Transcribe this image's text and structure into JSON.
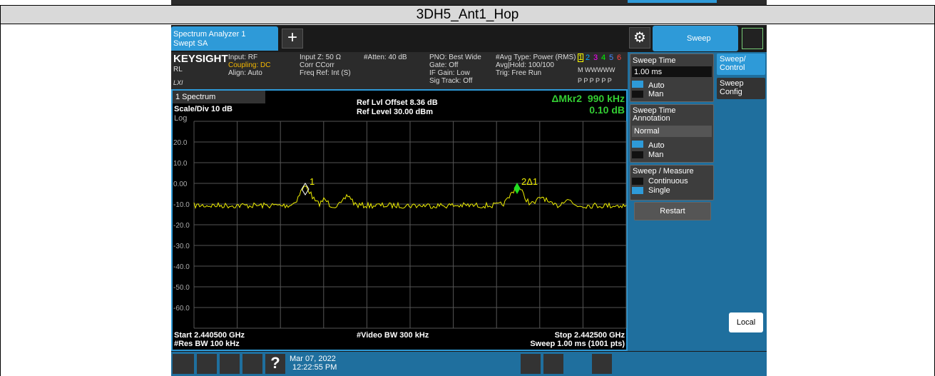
{
  "header": {
    "title": "3DH5_Ant1_Hop"
  },
  "app": {
    "tab": {
      "line1": "Spectrum Analyzer 1",
      "line2": "Swept SA"
    },
    "menu_title": "Sweep",
    "brand": "KEYSIGHT",
    "rl": "RL",
    "lxi": "LXI",
    "status": [
      [
        "Input: RF",
        "Coupling: DC",
        "Align: Auto"
      ],
      [
        "Input Z: 50 Ω",
        "Corr CCorr",
        "Freq Ref: Int (S)"
      ],
      [
        "#Atten: 40 dB"
      ],
      [
        "PNO: Best Wide",
        "Gate: Off",
        "IF Gain: Low",
        "Sig Track: Off"
      ],
      [
        "#Avg Type: Power (RMS)",
        "Avg|Hold: 100/100",
        "Trig: Free Run"
      ]
    ],
    "traces": {
      "numbers": [
        "1",
        "2",
        "3",
        "4",
        "5",
        "6"
      ],
      "types": "M WWWWW",
      "detectors": "P P P P P P"
    },
    "window": "1 Spectrum",
    "scale": "Scale/Div 10 dB",
    "log": "Log",
    "ref_offset": "Ref Lvl Offset 8.36 dB",
    "ref_level": "Ref Level 30.00 dBm",
    "marker_readout": {
      "label": "ΔMkr2  990 kHz",
      "value": "0.10 dB"
    },
    "y_labels": [
      "20.0",
      "10.0",
      "0.00",
      "-10.0",
      "-20.0",
      "-30.0",
      "-40.0",
      "-50.0",
      "-60.0"
    ],
    "markers": [
      "1",
      "2Δ1"
    ],
    "footer": {
      "start": "Start 2.440500 GHz",
      "res_bw": "#Res BW 100 kHz",
      "video_bw": "#Video BW 300 kHz",
      "stop": "Stop 2.442500 GHz",
      "sweep": "Sweep 1.00 ms (1001 pts)"
    },
    "softkeys": {
      "sweep_time": "Sweep Time",
      "sweep_time_value": "1.00 ms",
      "auto1": "Auto",
      "man1": "Man",
      "annotation": "Sweep Time Annotation",
      "annotation_value": "Normal",
      "auto2": "Auto",
      "man2": "Man",
      "sweep_measure": "Sweep / Measure",
      "continuous": "Continuous",
      "single": "Single",
      "restart": "Restart",
      "local": "Local"
    },
    "side_tabs": [
      "Sweep/ Control",
      "Sweep Config"
    ],
    "taskbar": {
      "date": "Mar 07, 2022",
      "time": "12:22:55 PM"
    }
  }
}
